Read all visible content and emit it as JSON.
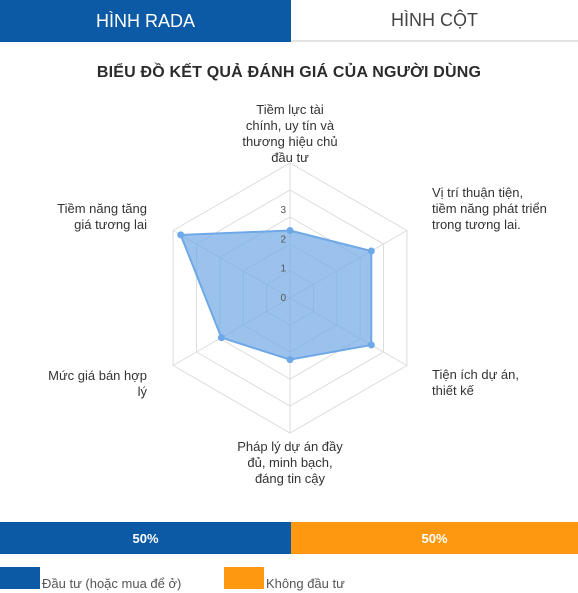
{
  "tabs": [
    {
      "label": "HÌNH RADA",
      "active": true
    },
    {
      "label": "HÌNH CỘT",
      "active": false
    }
  ],
  "chart_data": {
    "type": "radar",
    "title": "BIỂU ĐỒ KẾT QUẢ ĐÁNH GIÁ CỦA NGƯỜI DÙNG",
    "categories": [
      "Tiềm lực tài chính, uy tín và thương hiệu chủ đầu tư",
      "Vị trí thuận tiện, tiềm năng phát triển trong tương lai.",
      "Tiện ích dự án, thiết kế",
      "Pháp lý dự án đầy đủ, minh bạch, đáng tin cậy",
      "Mức giá bán hợp lý",
      "Tiềm năng tăng giá tương lai"
    ],
    "series": [
      {
        "values": [
          2.3,
          3.2,
          3.2,
          2.1,
          2.7,
          4.3
        ],
        "color": "#6fa8e6"
      }
    ],
    "radial_ticks": [
      "0",
      "1",
      "2",
      "3"
    ],
    "range": [
      0,
      4.6
    ],
    "grid": true
  },
  "split_bar": {
    "invest_label": "50%",
    "noinvest_label": "50%",
    "invest_color": "#0c5aa6",
    "noinvest_color": "#ff9811"
  },
  "legend": {
    "invest": "Đầu tư (hoặc mua để ở)",
    "noinvest": "Không đầu tư"
  }
}
